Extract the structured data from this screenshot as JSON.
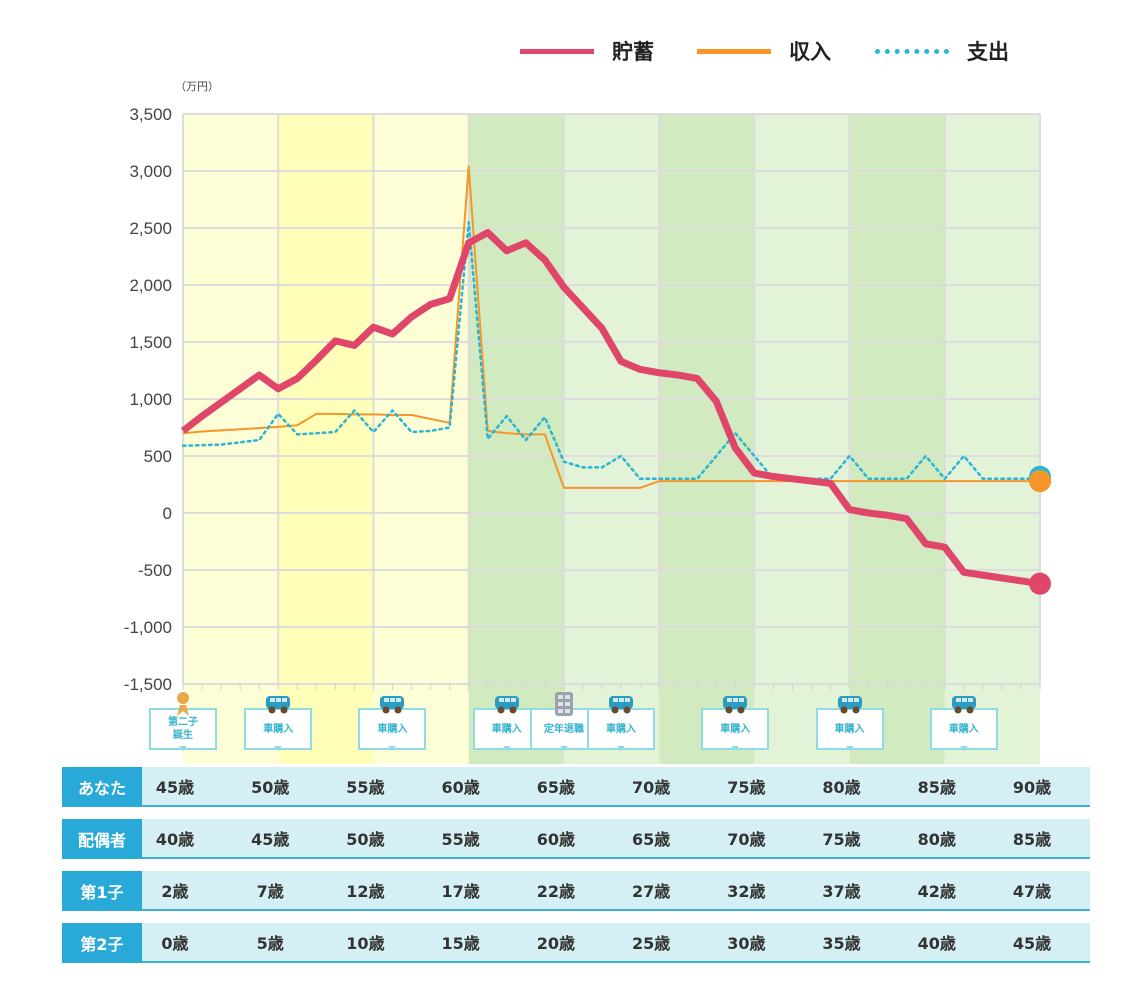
{
  "legend": [
    {
      "label": "貯蓄",
      "color": "#e0456a",
      "style": "solid"
    },
    {
      "label": "収入",
      "color": "#f5952a",
      "style": "solid"
    },
    {
      "label": "支出",
      "color": "#29b5d3",
      "style": "dotted"
    }
  ],
  "chart_data": {
    "type": "line",
    "unit_label": "（万円）",
    "ylim": [
      -1500,
      3500
    ],
    "yticks": [
      3500,
      3000,
      2500,
      2000,
      1500,
      1000,
      500,
      0,
      -500,
      -1000,
      -1500
    ],
    "ytick_labels": [
      "3,500",
      "3,000",
      "2,500",
      "2,000",
      "1,500",
      "1,000",
      "500",
      "0",
      "-500",
      "-1,000",
      "-1,500"
    ],
    "xlim": [
      45,
      90
    ],
    "x": [
      45,
      46,
      47,
      48,
      49,
      50,
      51,
      52,
      53,
      54,
      55,
      56,
      57,
      58,
      59,
      60,
      61,
      62,
      63,
      64,
      65,
      66,
      67,
      68,
      69,
      70,
      71,
      72,
      73,
      74,
      75,
      76,
      77,
      78,
      79,
      80,
      81,
      82,
      83,
      84,
      85,
      86,
      87,
      88,
      89,
      90
    ],
    "series": [
      {
        "name": "貯蓄",
        "color": "#e0456a",
        "values": [
          720,
          850,
          970,
          1090,
          1210,
          1090,
          1180,
          1340,
          1510,
          1470,
          1630,
          1570,
          1720,
          1830,
          1880,
          2370,
          2460,
          2300,
          2370,
          2220,
          1980,
          1800,
          1620,
          1330,
          1260,
          1230,
          1210,
          1180,
          980,
          570,
          350,
          320,
          300,
          280,
          260,
          30,
          0,
          -20,
          -50,
          -270,
          -300,
          -520,
          -545,
          -570,
          -595,
          -620
        ]
      },
      {
        "name": "収入",
        "color": "#f5952a",
        "values": [
          700,
          715,
          725,
          735,
          745,
          755,
          770,
          870,
          870,
          865,
          865,
          860,
          860,
          825,
          790,
          3040,
          720,
          700,
          690,
          690,
          220,
          220,
          220,
          220,
          220,
          280,
          280,
          280,
          280,
          280,
          280,
          280,
          280,
          280,
          280,
          280,
          280,
          280,
          280,
          280,
          280,
          280,
          280,
          280,
          280,
          280
        ]
      },
      {
        "name": "支出",
        "color": "#29b5d3",
        "values": [
          590,
          595,
          600,
          620,
          640,
          870,
          690,
          700,
          710,
          900,
          710,
          900,
          710,
          720,
          750,
          2550,
          650,
          850,
          640,
          840,
          450,
          400,
          400,
          500,
          300,
          300,
          300,
          300,
          500,
          700,
          500,
          300,
          300,
          300,
          300,
          500,
          300,
          300,
          300,
          500,
          300,
          500,
          300,
          300,
          300,
          300
        ]
      }
    ],
    "bands": [
      {
        "from": 45,
        "to": 50,
        "color": "#fefed6"
      },
      {
        "from": 50,
        "to": 55,
        "color": "#ffffb9"
      },
      {
        "from": 55,
        "to": 60,
        "color": "#fefed6"
      },
      {
        "from": 60,
        "to": 65,
        "color": "#d2eabf"
      },
      {
        "from": 65,
        "to": 70,
        "color": "#e3f3d8"
      },
      {
        "from": 70,
        "to": 75,
        "color": "#d2eabf"
      },
      {
        "from": 75,
        "to": 80,
        "color": "#e3f3d8"
      },
      {
        "from": 80,
        "to": 85,
        "color": "#d2eabf"
      },
      {
        "from": 85,
        "to": 90,
        "color": "#e3f3d8"
      }
    ],
    "grid": true,
    "legend_position": "top-right"
  },
  "events": [
    {
      "age": 45,
      "label": "第二子\n誕生",
      "icon": "person-icon"
    },
    {
      "age": 50,
      "label": "車購入",
      "icon": "car-icon"
    },
    {
      "age": 56,
      "label": "車購入",
      "icon": "car-icon"
    },
    {
      "age": 62,
      "label": "車購入",
      "icon": "car-icon"
    },
    {
      "age": 65,
      "label": "定年退職",
      "icon": "building-icon"
    },
    {
      "age": 68,
      "label": "車購入",
      "icon": "car-icon"
    },
    {
      "age": 74,
      "label": "車購入",
      "icon": "car-icon"
    },
    {
      "age": 80,
      "label": "車購入",
      "icon": "car-icon"
    },
    {
      "age": 86,
      "label": "車購入",
      "icon": "car-icon"
    }
  ],
  "table": [
    {
      "label": "あなた",
      "values": [
        "45歳",
        "50歳",
        "55歳",
        "60歳",
        "65歳",
        "70歳",
        "75歳",
        "80歳",
        "85歳",
        "90歳"
      ]
    },
    {
      "label": "配偶者",
      "values": [
        "40歳",
        "45歳",
        "50歳",
        "55歳",
        "60歳",
        "65歳",
        "70歳",
        "75歳",
        "80歳",
        "85歳"
      ]
    },
    {
      "label": "第1子",
      "values": [
        "2歳",
        "7歳",
        "12歳",
        "17歳",
        "22歳",
        "27歳",
        "32歳",
        "37歳",
        "42歳",
        "47歳"
      ]
    },
    {
      "label": "第2子",
      "values": [
        "0歳",
        "5歳",
        "10歳",
        "15歳",
        "20歳",
        "25歳",
        "30歳",
        "35歳",
        "40歳",
        "45歳"
      ]
    }
  ]
}
